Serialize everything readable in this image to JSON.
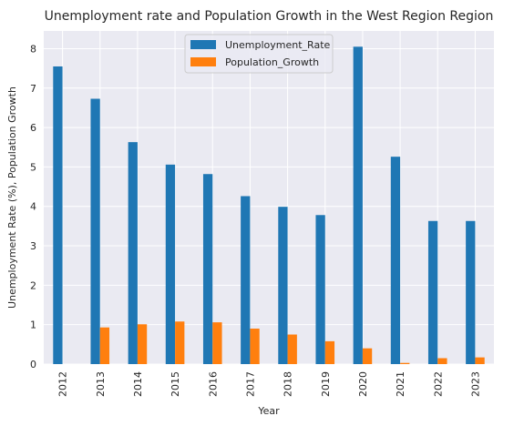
{
  "chart_data": {
    "type": "bar",
    "title": "Unemployment rate and Population Growth in the West Region Region",
    "xlabel": "Year",
    "ylabel": "Unemployment Rate (%), Population Growth",
    "ylim": [
      0,
      8.45
    ],
    "yticks": [
      0,
      1,
      2,
      3,
      4,
      5,
      6,
      7,
      8
    ],
    "grid": true,
    "legend_position": "top-center",
    "categories": [
      "2012",
      "2013",
      "2014",
      "2015",
      "2016",
      "2017",
      "2018",
      "2019",
      "2020",
      "2021",
      "2022",
      "2023"
    ],
    "series": [
      {
        "name": "Unemployment_Rate",
        "color": "#1f77b4",
        "values": [
          7.55,
          6.73,
          5.63,
          5.06,
          4.82,
          4.26,
          3.99,
          3.78,
          8.05,
          5.26,
          3.63,
          3.63
        ]
      },
      {
        "name": "Population_Growth",
        "color": "#ff7f0e",
        "values": [
          0.0,
          0.93,
          1.01,
          1.08,
          1.06,
          0.9,
          0.75,
          0.58,
          0.4,
          0.03,
          0.15,
          0.17
        ]
      }
    ]
  }
}
